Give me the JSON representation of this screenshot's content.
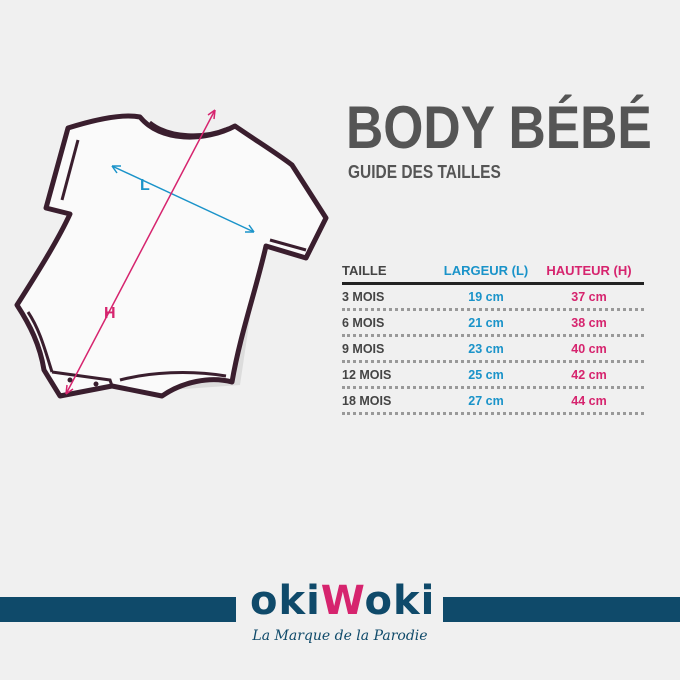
{
  "title": "BODY BÉBÉ",
  "subtitle": "GUIDE DES TAILLES",
  "diagram": {
    "width_label": "L",
    "height_label": "H"
  },
  "table": {
    "headers": [
      "TAILLE",
      "LARGEUR (L)",
      "HAUTEUR (H)"
    ],
    "rows": [
      [
        "3 MOIS",
        "19 cm",
        "37 cm"
      ],
      [
        "6 MOIS",
        "21 cm",
        "38 cm"
      ],
      [
        "9 MOIS",
        "23 cm",
        "40 cm"
      ],
      [
        "12 MOIS",
        "25 cm",
        "42 cm"
      ],
      [
        "18 MOIS",
        "27 cm",
        "44 cm"
      ]
    ]
  },
  "brand": {
    "logo_a": "oki",
    "logo_w": "W",
    "logo_b": "oki",
    "tagline": "La Marque de la Parodie"
  },
  "colors": {
    "navy": "#0f4a6a",
    "pink": "#d6246e",
    "blue": "#1a93c9",
    "text": "#555555"
  }
}
